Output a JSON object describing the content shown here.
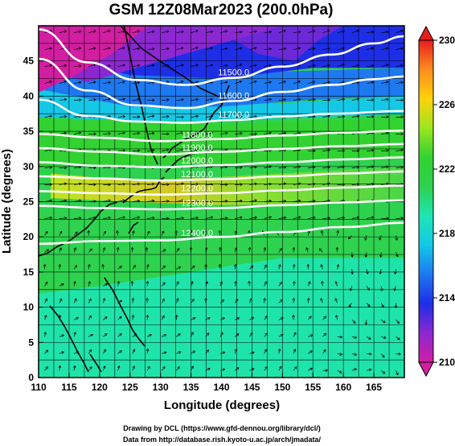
{
  "chart_data": {
    "type": "heatmap",
    "title": "GSM 12Z08Mar2023 (200.0hPa)",
    "xlabel": "Longitude (degrees)",
    "ylabel": "Latitude (degrees)",
    "xlim": [
      110,
      170
    ],
    "ylim": [
      0,
      50
    ],
    "xticks": [
      110,
      115,
      120,
      125,
      130,
      135,
      140,
      145,
      150,
      155,
      160,
      165
    ],
    "yticks": [
      0,
      5,
      10,
      15,
      20,
      25,
      30,
      35,
      40,
      45
    ],
    "colorbar": {
      "min": 210,
      "max": 230,
      "ticks": [
        210,
        214,
        218,
        222,
        226,
        230
      ],
      "colors": [
        "#d21ea0",
        "#8c28d2",
        "#1e2ee6",
        "#1e78f0",
        "#14c8e6",
        "#1ee6b4",
        "#2ed24e",
        "#32d232",
        "#9ae61e",
        "#ffd20a",
        "#ff8c1e",
        "#e61e1e"
      ]
    },
    "contours": [
      {
        "label": "11500.0",
        "y_by_x": [
          [
            110,
            49.5
          ],
          [
            118,
            44.8
          ],
          [
            126,
            42.3
          ],
          [
            134,
            41.6
          ],
          [
            142,
            42.6
          ],
          [
            150,
            44.2
          ],
          [
            158,
            45.9
          ],
          [
            165,
            47.5
          ],
          [
            170,
            48.5
          ]
        ]
      },
      {
        "label": "11600.0",
        "y_by_x": [
          [
            110,
            45.3
          ],
          [
            118,
            40.8
          ],
          [
            126,
            38.7
          ],
          [
            134,
            38.3
          ],
          [
            142,
            39.3
          ],
          [
            150,
            40.6
          ],
          [
            158,
            41.6
          ],
          [
            165,
            42.4
          ],
          [
            170,
            42.8
          ]
        ]
      },
      {
        "label": "11700.0",
        "y_by_x": [
          [
            110,
            39.5
          ],
          [
            118,
            37.2
          ],
          [
            126,
            36.4
          ],
          [
            134,
            36.2
          ],
          [
            142,
            36.6
          ],
          [
            150,
            37.1
          ],
          [
            158,
            37.5
          ],
          [
            170,
            37.9
          ]
        ]
      },
      {
        "label": "11800.0",
        "y_by_x": [
          [
            110,
            34.6
          ],
          [
            120,
            34.1
          ],
          [
            130,
            33.6
          ],
          [
            140,
            33.9
          ],
          [
            150,
            34.4
          ],
          [
            160,
            34.8
          ],
          [
            170,
            35.1
          ]
        ]
      },
      {
        "label": "11900.0",
        "y_by_x": [
          [
            110,
            32.6
          ],
          [
            120,
            32.1
          ],
          [
            130,
            31.7
          ],
          [
            140,
            32.1
          ],
          [
            150,
            32.5
          ],
          [
            160,
            32.9
          ],
          [
            170,
            33.2
          ]
        ]
      },
      {
        "label": "12000.0",
        "y_by_x": [
          [
            110,
            30.6
          ],
          [
            120,
            30.1
          ],
          [
            130,
            29.9
          ],
          [
            140,
            30.2
          ],
          [
            150,
            30.6
          ],
          [
            160,
            31.0
          ],
          [
            170,
            31.3
          ]
        ]
      },
      {
        "label": "12100.0",
        "y_by_x": [
          [
            110,
            28.6
          ],
          [
            120,
            28.3
          ],
          [
            130,
            28.0
          ],
          [
            140,
            28.2
          ],
          [
            150,
            28.6
          ],
          [
            160,
            29.0
          ],
          [
            170,
            29.3
          ]
        ]
      },
      {
        "label": "12200.0",
        "y_by_x": [
          [
            110,
            26.5
          ],
          [
            120,
            26.2
          ],
          [
            130,
            26.0
          ],
          [
            140,
            26.2
          ],
          [
            150,
            26.6
          ],
          [
            160,
            27.0
          ],
          [
            170,
            27.3
          ]
        ]
      },
      {
        "label": "12300.0",
        "y_by_x": [
          [
            110,
            24.4
          ],
          [
            120,
            24.1
          ],
          [
            130,
            23.9
          ],
          [
            140,
            24.1
          ],
          [
            150,
            24.5
          ],
          [
            160,
            24.9
          ],
          [
            170,
            25.2
          ]
        ]
      },
      {
        "label": "12400.0",
        "y_by_x": [
          [
            110,
            19.0
          ],
          [
            120,
            19.4
          ],
          [
            130,
            19.5
          ],
          [
            140,
            20.0
          ],
          [
            150,
            20.7
          ],
          [
            160,
            21.4
          ],
          [
            170,
            22.0
          ]
        ]
      }
    ]
  },
  "credits": [
    "Drawing by DCL (https://www.gfd-dennou.org/library/dcl/)",
    "Data from http://database.rish.kyoto-u.ac.jp/arch/jmadata/"
  ]
}
